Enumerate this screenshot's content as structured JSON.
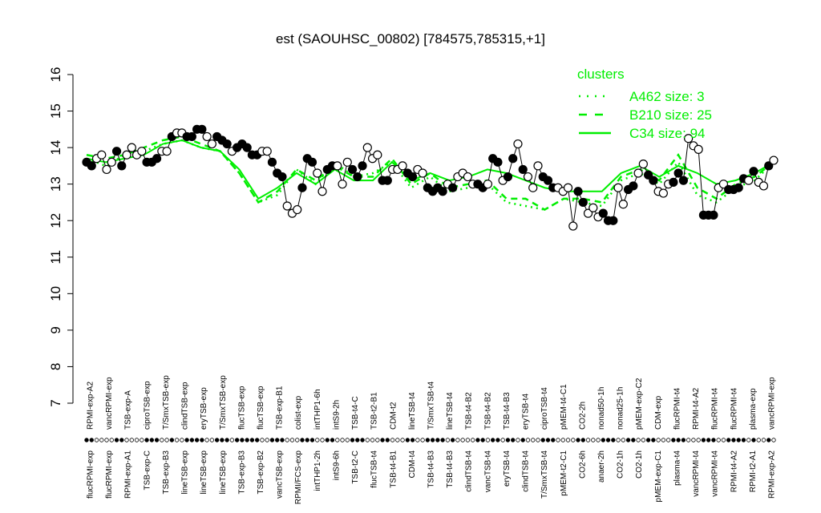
{
  "chart_data": {
    "type": "line",
    "title": "est (SAOUHSC_00802) [784575,785315,+1]",
    "xlabel": "",
    "ylabel": "",
    "ylim": [
      7,
      16
    ],
    "yticks": [
      7,
      8,
      9,
      10,
      11,
      12,
      13,
      14,
      15,
      16
    ],
    "grid": false,
    "legend": {
      "title": "clusters",
      "placement": "top-right",
      "entries": [
        {
          "label": "A462 size: 3",
          "style": "dotted"
        },
        {
          "label": "B210 size: 25",
          "style": "dashed"
        },
        {
          "label": "C34 size: 94",
          "style": "solid"
        }
      ]
    },
    "colors": {
      "clusters": "#00ee00",
      "points": "#000000"
    },
    "points": {
      "values": [
        13.6,
        13.5,
        13.7,
        13.8,
        13.4,
        13.6,
        13.9,
        13.5,
        13.8,
        14.0,
        13.8,
        13.9,
        13.6,
        13.6,
        13.7,
        13.9,
        13.9,
        14.3,
        14.4,
        14.4,
        14.3,
        14.3,
        14.5,
        14.5,
        14.3,
        14.1,
        14.3,
        14.2,
        14.1,
        13.9,
        14.0,
        14.1,
        14.0,
        13.8,
        13.8,
        13.9,
        13.9,
        13.6,
        13.3,
        13.2,
        12.4,
        12.2,
        12.3,
        12.9,
        13.7,
        13.6,
        13.3,
        12.8,
        13.4,
        13.5,
        13.5,
        13.0,
        13.6,
        13.4,
        13.2,
        13.5,
        14.0,
        13.7,
        13.8,
        13.1,
        13.1,
        13.4,
        13.4,
        13.5,
        13.3,
        13.2,
        13.4,
        13.3,
        12.9,
        12.8,
        12.9,
        12.8,
        13.0,
        12.9,
        13.2,
        13.3,
        13.2,
        13.0,
        13.0,
        12.9,
        13.0,
        13.7,
        13.6,
        13.1,
        13.2,
        13.7,
        14.1,
        13.4,
        13.2,
        12.9,
        13.5,
        13.2,
        13.1,
        12.9,
        12.9,
        12.8,
        12.9,
        11.85,
        12.8,
        12.5,
        12.2,
        12.35,
        12.1,
        12.2,
        12.0,
        12.0,
        12.9,
        12.45,
        12.85,
        12.95,
        13.3,
        13.55,
        13.25,
        13.1,
        12.8,
        12.75,
        13.0,
        13.05,
        13.3,
        13.1,
        14.25,
        14.05,
        13.95,
        12.15,
        12.15,
        12.15,
        12.9,
        13.0,
        12.85,
        12.85,
        12.9,
        13.15,
        13.1,
        13.35,
        13.05,
        12.95,
        13.5,
        13.65
      ],
      "filled": [
        1,
        1,
        0,
        0,
        0,
        0,
        1,
        1,
        0,
        0,
        0,
        0,
        1,
        1,
        1,
        0,
        0,
        1,
        0,
        0,
        1,
        1,
        1,
        1,
        0,
        0,
        1,
        1,
        1,
        0,
        1,
        1,
        1,
        1,
        1,
        0,
        0,
        1,
        1,
        1,
        0,
        0,
        0,
        1,
        1,
        1,
        0,
        0,
        1,
        1,
        0,
        0,
        0,
        1,
        1,
        1,
        0,
        0,
        0,
        1,
        1,
        0,
        0,
        0,
        1,
        1,
        0,
        0,
        1,
        1,
        1,
        1,
        0,
        1,
        0,
        0,
        0,
        0,
        1,
        1,
        0,
        1,
        1,
        0,
        1,
        1,
        0,
        1,
        0,
        0,
        0,
        1,
        1,
        1,
        0,
        0,
        0,
        0,
        1,
        1,
        0,
        0,
        0,
        1,
        1,
        1,
        0,
        0,
        1,
        1,
        0,
        0,
        1,
        1,
        0,
        0,
        0,
        1,
        1,
        1,
        0,
        0,
        0,
        1,
        1,
        1,
        0,
        0,
        1,
        1,
        1,
        1,
        0,
        1,
        0,
        0,
        1,
        0
      ]
    },
    "clusters": {
      "C34": [
        13.7,
        13.6,
        13.7,
        13.8,
        14.1,
        14.2,
        14.0,
        13.9,
        13.4,
        12.6,
        12.9,
        13.3,
        13.0,
        13.4,
        13.1,
        13.1,
        13.6,
        13.1,
        13.3,
        13.1,
        13.2,
        13.4,
        13.3,
        13.1,
        12.9,
        12.8,
        12.8,
        12.8,
        13.3,
        13.5,
        13.2,
        13.5,
        13.3,
        13.0,
        13.1,
        13.3,
        13.6
      ],
      "B210": [
        13.8,
        13.7,
        13.8,
        14.0,
        14.2,
        14.3,
        14.1,
        13.9,
        13.3,
        12.5,
        12.8,
        13.4,
        13.1,
        13.5,
        13.2,
        13.2,
        13.7,
        13.0,
        13.3,
        12.9,
        13.0,
        13.1,
        12.6,
        12.6,
        12.3,
        12.6,
        12.6,
        12.5,
        13.2,
        13.4,
        13.1,
        13.8,
        12.9,
        12.6,
        13.0,
        13.2,
        13.6
      ],
      "A462": [
        13.7,
        13.5,
        13.8,
        13.9,
        14.1,
        14.2,
        14.0,
        13.9,
        13.3,
        12.5,
        12.7,
        13.4,
        13.0,
        13.6,
        13.2,
        13.3,
        13.6,
        12.9,
        13.2,
        12.8,
        12.9,
        13.0,
        12.5,
        12.4,
        12.3,
        12.6,
        12.5,
        12.4,
        13.1,
        13.3,
        13.0,
        13.6,
        12.7,
        12.5,
        12.9,
        13.1,
        13.6
      ]
    },
    "x_labels_top": [
      "RPMI-exp-A2",
      "vancRPMI-exp",
      "TSB-exp-A",
      "ciproTSB-exp",
      "T/SmxTSB-exp",
      "clindTSB-exp",
      "eryTSB-exp",
      "T/SmxTSB-exp",
      "flucTSB-exp",
      "flucTSB-exp",
      "TSB-exp-B1",
      "colist-exp",
      "intTHP1-6h",
      "intS9-2h",
      "TSB-t4-C",
      "TSB-t2-B1",
      "CDM-t2",
      "lineTSB-t4",
      "T/SmxTSB-t4",
      "lineTSB-t4",
      "TSB-t4-B2",
      "TSB-t4-B2",
      "TSB-t4-B3",
      "eryTSB-t4",
      "ciproTSB-t4",
      "pMEM-t4-C1",
      "CO2-2h",
      "nonad50-1h",
      "nonad25-1h",
      "pMEM-exp-C2",
      "CDM-exp",
      "flucRPMI-t4",
      "RPMI-t4-A2",
      "flucRPMI-t4",
      "flucRPMI-t4",
      "plasma-exp",
      "vancRPMI-exp"
    ],
    "x_labels_bottom": [
      "flucRPMI-exp",
      "flucRPMI-exp",
      "RPMI-exp-A1",
      "TSB-exp-C",
      "TSB-exp-B3",
      "lineTSB-exp",
      "lineTSB-exp",
      "lineTSB-exp",
      "TSB-exp-B3",
      "TSB-exp-B2",
      "vancTSB-exp",
      "RPMI/FCS-exp",
      "intTHP1-2h",
      "intS9-6h",
      "TSB-t2-C",
      "flucTSB-t4",
      "TSB-t4-B1",
      "CDM-t4",
      "TSB-t4-B3",
      "TSB-t4-B3",
      "clindTSB-t4",
      "vancTSB-t4",
      "eryTSB-t4",
      "clindTSB-t4",
      "T/SmxTSB-t4",
      "pMEM-t2-C1",
      "CO2-6h",
      "anaer-2h",
      "CO2-1h",
      "CO2-1h",
      "pMEM-exp-C1",
      "plasma-t4",
      "vancRPMI-t4",
      "vancRPMI-t4",
      "RPMI-t4-A2",
      "RPMI-t2-A1",
      "RPMI-exp-A2"
    ]
  }
}
